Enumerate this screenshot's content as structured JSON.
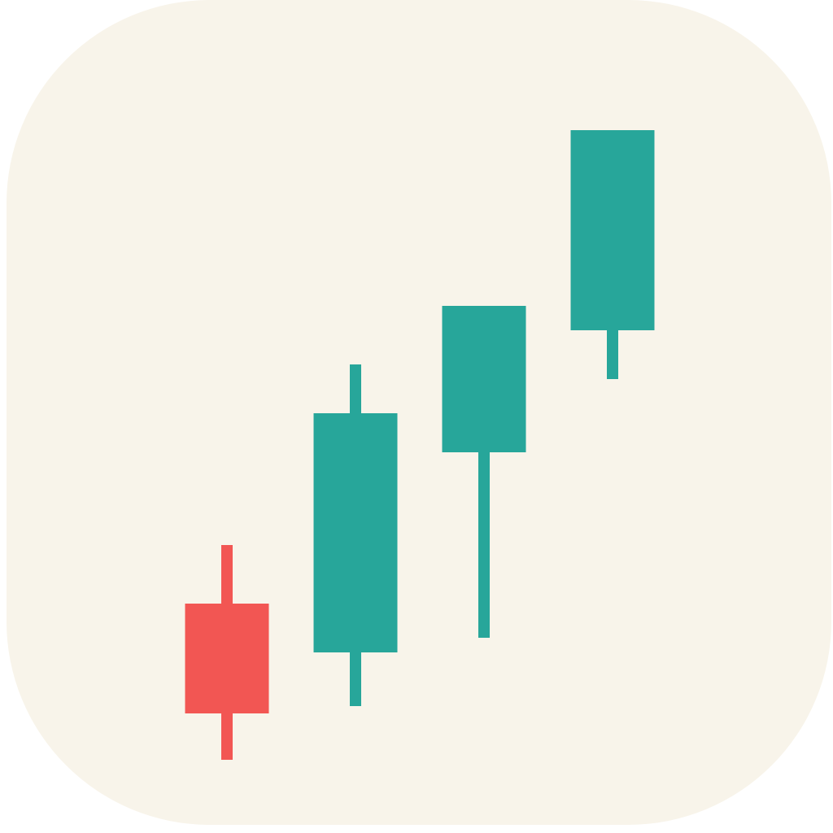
{
  "icon": {
    "name": "candlestick-chart-app-icon",
    "background_color": "#F8F4EA"
  },
  "chart_data": {
    "type": "candlestick",
    "candles": [
      {
        "open": 3.2,
        "high": 4.4,
        "low": 0.0,
        "close": 0.95,
        "direction": "down"
      },
      {
        "open": 2.2,
        "high": 8.1,
        "low": 1.1,
        "close": 7.1,
        "direction": "up"
      },
      {
        "open": 6.3,
        "high": 9.3,
        "low": 2.5,
        "close": 9.3,
        "direction": "up"
      },
      {
        "open": 8.8,
        "high": 12.9,
        "low": 7.8,
        "close": 12.9,
        "direction": "up"
      }
    ],
    "colors": {
      "up": "#27A69A",
      "down": "#F25653"
    },
    "ylim": [
      0,
      15
    ],
    "grid": false,
    "legend": false
  }
}
